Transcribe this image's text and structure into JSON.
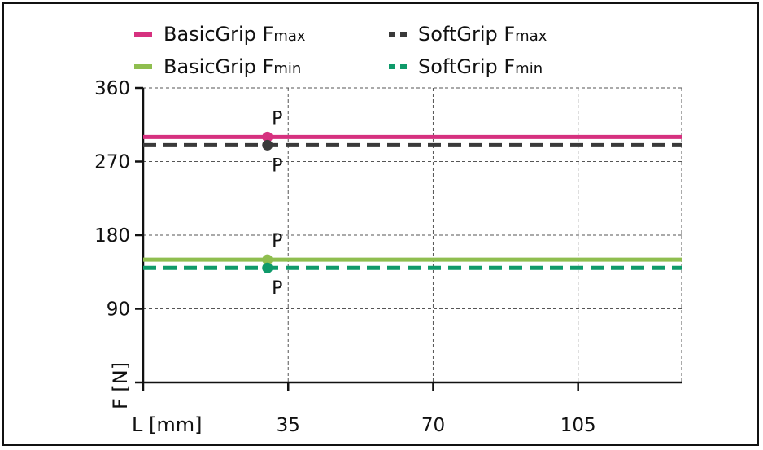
{
  "chart_data": {
    "type": "line",
    "title": "",
    "xlabel": "L [mm]",
    "ylabel": "F [N]",
    "xlim": [
      0,
      130
    ],
    "ylim": [
      0,
      360
    ],
    "x_ticks": [
      35,
      70,
      105
    ],
    "y_ticks": [
      90,
      180,
      270,
      360
    ],
    "grid": true,
    "legend_position": "top",
    "series": [
      {
        "name": "BasicGrip Fmax",
        "name_main": "BasicGrip F",
        "name_sub": "max",
        "color": "#d6317f",
        "dash": "solid",
        "x": [
          0,
          130
        ],
        "values": [
          300,
          300
        ],
        "point": {
          "x": 30,
          "y": 300,
          "label": "P",
          "label_side": "above"
        }
      },
      {
        "name": "SoftGrip Fmax",
        "name_main": "SoftGrip F",
        "name_sub": "max",
        "color": "#3a3a3a",
        "dash": "dashed",
        "x": [
          0,
          130
        ],
        "values": [
          290,
          290
        ],
        "point": {
          "x": 30,
          "y": 290,
          "label": "P",
          "label_side": "below"
        }
      },
      {
        "name": "BasicGrip Fmin",
        "name_main": "BasicGrip F",
        "name_sub": "min",
        "color": "#8fbe4f",
        "dash": "solid",
        "x": [
          0,
          130
        ],
        "values": [
          150,
          150
        ],
        "point": {
          "x": 30,
          "y": 150,
          "label": "P",
          "label_side": "above"
        }
      },
      {
        "name": "SoftGrip Fmin",
        "name_main": "SoftGrip F",
        "name_sub": "min",
        "color": "#0f9a6a",
        "dash": "dashed",
        "x": [
          0,
          130
        ],
        "values": [
          140,
          140
        ],
        "point": {
          "x": 30,
          "y": 140,
          "label": "P",
          "label_side": "below"
        }
      }
    ]
  }
}
